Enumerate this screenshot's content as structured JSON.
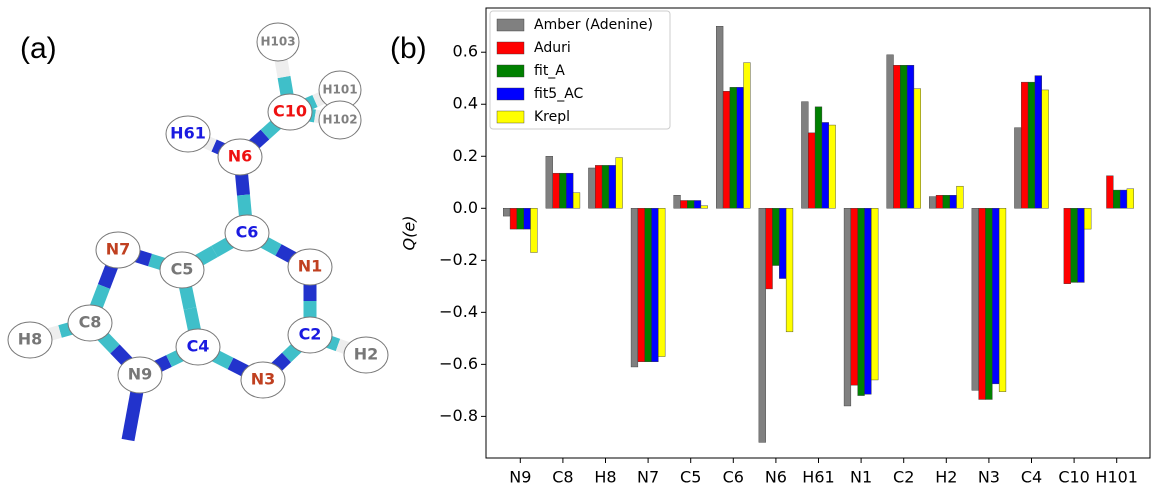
{
  "panel_a": {
    "label": "(a)",
    "atoms": [
      "H103",
      "H101",
      "H102",
      "C10",
      "H61",
      "N6",
      "C6",
      "N7",
      "C5",
      "N1",
      "C8",
      "C4",
      "C2",
      "H8",
      "N9",
      "N3",
      "H2"
    ]
  },
  "panel_b": {
    "label": "(b)"
  },
  "chart_data": {
    "type": "bar",
    "ylabel": "Q(e)",
    "categories": [
      "N9",
      "C8",
      "H8",
      "N7",
      "C5",
      "C6",
      "N6",
      "H61",
      "N1",
      "C2",
      "H2",
      "N3",
      "C4",
      "C10",
      "H101"
    ],
    "series": [
      {
        "name": "Amber (Adenine)",
        "color": "#808080",
        "values": [
          -0.03,
          0.2,
          0.155,
          -0.61,
          0.05,
          0.7,
          -0.9,
          0.41,
          -0.76,
          0.59,
          0.045,
          -0.7,
          0.31,
          0.0,
          0.0
        ]
      },
      {
        "name": "Aduri",
        "color": "#ff0000",
        "values": [
          -0.08,
          0.135,
          0.165,
          -0.59,
          0.03,
          0.45,
          -0.31,
          0.29,
          -0.68,
          0.55,
          0.05,
          -0.735,
          0.485,
          -0.29,
          0.125
        ]
      },
      {
        "name": "fit_A",
        "color": "#008000",
        "values": [
          -0.08,
          0.135,
          0.165,
          -0.59,
          0.03,
          0.465,
          -0.22,
          0.39,
          -0.72,
          0.55,
          0.05,
          -0.735,
          0.485,
          -0.285,
          0.07
        ]
      },
      {
        "name": "fit5_AC",
        "color": "#0000ff",
        "values": [
          -0.08,
          0.135,
          0.165,
          -0.59,
          0.03,
          0.465,
          -0.27,
          0.33,
          -0.715,
          0.55,
          0.05,
          -0.675,
          0.51,
          -0.285,
          0.07
        ]
      },
      {
        "name": "Krepl",
        "color": "#ffff00",
        "values": [
          -0.17,
          0.06,
          0.195,
          -0.57,
          0.01,
          0.56,
          -0.475,
          0.32,
          -0.66,
          0.46,
          0.085,
          -0.705,
          0.455,
          -0.08,
          0.075
        ]
      }
    ],
    "ylim": [
      -0.96,
      0.77
    ],
    "yticks": [
      {
        "value": -0.8,
        "label": "−0.8"
      },
      {
        "value": -0.6,
        "label": "−0.6"
      },
      {
        "value": -0.4,
        "label": "−0.4"
      },
      {
        "value": -0.2,
        "label": "−0.2"
      },
      {
        "value": 0,
        "label": "0.0"
      },
      0.2,
      0.4,
      0.6
    ],
    "legend": "upper left"
  }
}
